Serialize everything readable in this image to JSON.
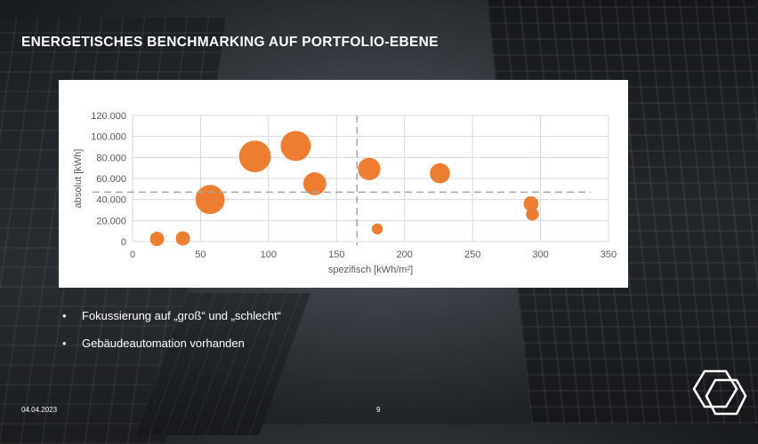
{
  "slide": {
    "title": "ENERGETISCHES BENCHMARKING AUF PORTFOLIO-EBENE",
    "date": "04.04.2023",
    "page_number": "9"
  },
  "bullets": [
    {
      "symbol": "•",
      "text": "Fokussierung auf „groß“ und „schlecht“"
    },
    {
      "symbol": "•",
      "text": "Gebäudeautomation vorhanden"
    }
  ],
  "colors": {
    "bubble": "#ED7D31",
    "grid": "#D9D9D9",
    "reference_line": "#A6A6A6"
  },
  "chart_data": {
    "type": "scatter",
    "title": "",
    "xlabel": "spezifisch [kWh/m²]",
    "ylabel": "absolut [kWh]",
    "xlim": [
      0,
      350
    ],
    "ylim": [
      0,
      120000
    ],
    "x_ticks": [
      0,
      50,
      100,
      150,
      200,
      250,
      300,
      350
    ],
    "x_tick_labels": [
      "0",
      "50",
      "100",
      "150",
      "200",
      "250",
      "300",
      "350"
    ],
    "y_ticks": [
      0,
      20000,
      40000,
      60000,
      80000,
      100000,
      120000
    ],
    "y_tick_labels": [
      "0",
      "20.000",
      "40.000",
      "60.000",
      "80.000",
      "100.000",
      "120.000"
    ],
    "grid": true,
    "legend": "none",
    "reference_lines": [
      {
        "axis": "x",
        "value": 165,
        "style": "dashed"
      },
      {
        "axis": "y",
        "value": 47000,
        "style": "dashed"
      }
    ],
    "points": [
      {
        "x": 18,
        "y": 2500,
        "size": 1
      },
      {
        "x": 37,
        "y": 3000,
        "size": 1
      },
      {
        "x": 57,
        "y": 40000,
        "size": 4.2
      },
      {
        "x": 90,
        "y": 81000,
        "size": 5
      },
      {
        "x": 120,
        "y": 91000,
        "size": 4.5
      },
      {
        "x": 134,
        "y": 55000,
        "size": 2.6
      },
      {
        "x": 174,
        "y": 69000,
        "size": 2.5
      },
      {
        "x": 180,
        "y": 12000,
        "size": 0.6
      },
      {
        "x": 226,
        "y": 65000,
        "size": 2
      },
      {
        "x": 293,
        "y": 36000,
        "size": 1.1
      },
      {
        "x": 294,
        "y": 26000,
        "size": 0.8
      }
    ]
  }
}
